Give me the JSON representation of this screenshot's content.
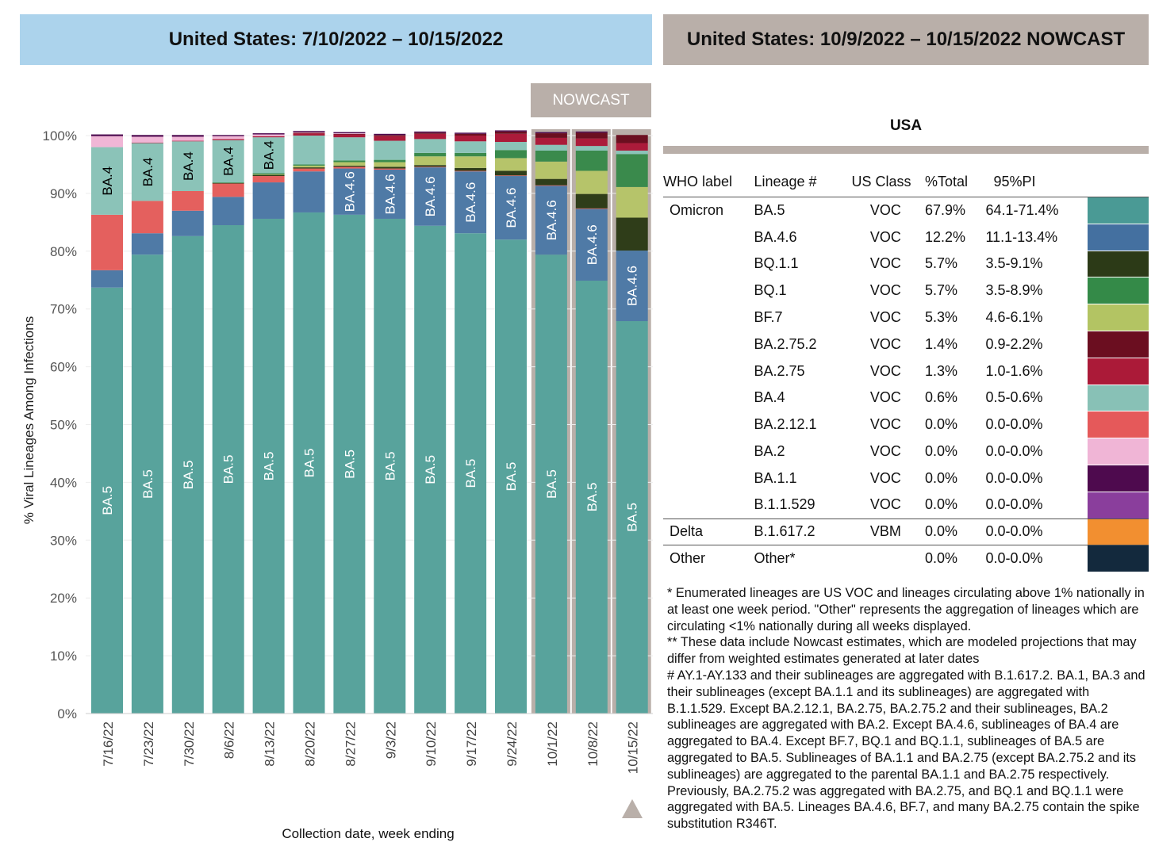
{
  "headers": {
    "left": "United States: 7/10/2022 – 10/15/2022",
    "right": "United States: 10/9/2022 – 10/15/2022 NOWCAST"
  },
  "nowcast_label": "NOWCAST",
  "chart_data": {
    "type": "bar",
    "stacked": true,
    "xlabel": "Collection date, week ending",
    "ylabel": "% Viral Lineages Among Infections",
    "ylim": [
      0,
      100
    ],
    "yticks": [
      "0%",
      "10%",
      "20%",
      "30%",
      "40%",
      "50%",
      "60%",
      "70%",
      "80%",
      "90%",
      "100%"
    ],
    "grid": true,
    "categories": [
      "7/16/22",
      "7/23/22",
      "7/30/22",
      "8/6/22",
      "8/13/22",
      "8/20/22",
      "8/27/22",
      "9/3/22",
      "9/10/22",
      "9/17/22",
      "9/24/22",
      "10/1/22",
      "10/8/22",
      "10/15/22"
    ],
    "nowcast_weeks": [
      "10/1/22",
      "10/8/22",
      "10/15/22"
    ],
    "series": [
      {
        "name": "BA.5",
        "color": "#58a39c",
        "label_color": "#ffffff",
        "labeled_weeks": [
          0,
          1,
          2,
          3,
          4,
          5,
          6,
          7,
          8,
          9,
          10,
          11,
          12,
          13
        ],
        "values": [
          73.7,
          79.4,
          82.6,
          84.5,
          85.6,
          86.7,
          86.3,
          85.6,
          84.4,
          83.1,
          82.0,
          79.4,
          74.9,
          67.9
        ]
      },
      {
        "name": "BA.4.6",
        "color": "#4f7aa6",
        "label_color": "#ffffff",
        "labeled_weeks": [
          6,
          7,
          8,
          9,
          10,
          11,
          12,
          13
        ],
        "values": [
          3.0,
          3.7,
          4.4,
          4.9,
          6.3,
          7.1,
          8.0,
          8.5,
          10.1,
          10.7,
          11.0,
          11.9,
          12.4,
          12.2
        ]
      },
      {
        "name": "BA.2.12.1",
        "color": "#e4605e",
        "values": [
          9.6,
          5.6,
          3.4,
          2.3,
          1.1,
          0.5,
          0.3,
          0.2,
          0.1,
          0.1,
          0.1,
          0.1,
          0.1,
          0.0
        ]
      },
      {
        "name": "BQ.1.1",
        "color": "#2f3d19",
        "values": [
          0,
          0,
          0,
          0.1,
          0.2,
          0.2,
          0.2,
          0.3,
          0.3,
          0.5,
          0.8,
          1.1,
          2.5,
          5.7
        ]
      },
      {
        "name": "BF.7",
        "color": "#b6c46a",
        "values": [
          0,
          0,
          0,
          0,
          0.1,
          0.3,
          0.6,
          0.8,
          1.5,
          2.0,
          2.2,
          3.0,
          4.0,
          5.3
        ]
      },
      {
        "name": "BQ.1",
        "color": "#3a8a4c",
        "values": [
          0,
          0,
          0,
          0.1,
          0.2,
          0.2,
          0.3,
          0.4,
          0.6,
          0.6,
          1.4,
          1.9,
          3.5,
          5.7
        ]
      },
      {
        "name": "BA.4",
        "color": "#8bc3b8",
        "label_color": "#000000",
        "labeled_weeks": [
          0,
          1,
          2,
          3,
          4
        ],
        "values": [
          11.7,
          10.0,
          8.6,
          7.3,
          6.2,
          5.0,
          4.0,
          3.3,
          2.4,
          2.0,
          1.4,
          1.0,
          0.8,
          0.6
        ]
      },
      {
        "name": "BA.2.75",
        "color": "#ab1b3a",
        "values": [
          0,
          0.1,
          0.1,
          0.2,
          0.2,
          0.4,
          0.5,
          0.8,
          0.9,
          1.0,
          1.4,
          1.2,
          1.3,
          1.3
        ]
      },
      {
        "name": "BA.2.75.2",
        "color": "#6b0f20",
        "values": [
          0,
          0,
          0,
          0,
          0,
          0.1,
          0.1,
          0.2,
          0.2,
          0.3,
          0.4,
          0.8,
          1.0,
          1.4
        ]
      },
      {
        "name": "BA.2",
        "color": "#f0b6d6",
        "values": [
          1.9,
          1.0,
          0.7,
          0.5,
          0.3,
          0.1,
          0.1,
          0,
          0,
          0,
          0,
          0,
          0,
          0
        ]
      },
      {
        "name": "BA.1.1",
        "color": "#4d0a4f",
        "values": [
          0.3,
          0.3,
          0.3,
          0.2,
          0.2,
          0.2,
          0.2,
          0.2,
          0.2,
          0.2,
          0.2,
          0.2,
          0.2,
          0
        ]
      }
    ]
  },
  "table": {
    "title": "USA",
    "columns": [
      "WHO label",
      "Lineage #",
      "US Class",
      "%Total",
      "95%PI"
    ],
    "rows": [
      {
        "who": "Omicron",
        "lineage": "BA.5",
        "cls": "VOC",
        "total": "67.9%",
        "pi": "64.1-71.4%",
        "color": "#4a9a95"
      },
      {
        "who": "",
        "lineage": "BA.4.6",
        "cls": "VOC",
        "total": "12.2%",
        "pi": "11.1-13.4%",
        "color": "#4470a0"
      },
      {
        "who": "",
        "lineage": "BQ.1.1",
        "cls": "VOC",
        "total": "5.7%",
        "pi": "3.5-9.1%",
        "color": "#2c3a17"
      },
      {
        "who": "",
        "lineage": "BQ.1",
        "cls": "VOC",
        "total": "5.7%",
        "pi": "3.5-8.9%",
        "color": "#348a48"
      },
      {
        "who": "",
        "lineage": "BF.7",
        "cls": "VOC",
        "total": "5.3%",
        "pi": "4.6-6.1%",
        "color": "#b3c463"
      },
      {
        "who": "",
        "lineage": "BA.2.75.2",
        "cls": "VOC",
        "total": "1.4%",
        "pi": "0.9-2.2%",
        "color": "#6b0e20"
      },
      {
        "who": "",
        "lineage": "BA.2.75",
        "cls": "VOC",
        "total": "1.3%",
        "pi": "1.0-1.6%",
        "color": "#ab1a38"
      },
      {
        "who": "",
        "lineage": "BA.4",
        "cls": "VOC",
        "total": "0.6%",
        "pi": "0.5-0.6%",
        "color": "#88c1b6"
      },
      {
        "who": "",
        "lineage": "BA.2.12.1",
        "cls": "VOC",
        "total": "0.0%",
        "pi": "0.0-0.0%",
        "color": "#e5595a"
      },
      {
        "who": "",
        "lineage": "BA.2",
        "cls": "VOC",
        "total": "0.0%",
        "pi": "0.0-0.0%",
        "color": "#f0b5d6"
      },
      {
        "who": "",
        "lineage": "BA.1.1",
        "cls": "VOC",
        "total": "0.0%",
        "pi": "0.0-0.0%",
        "color": "#4e0a4e"
      },
      {
        "who": "",
        "lineage": "B.1.1.529",
        "cls": "VOC",
        "total": "0.0%",
        "pi": "0.0-0.0%",
        "color": "#8a3e9c"
      },
      {
        "who": "Delta",
        "lineage": "B.1.617.2",
        "cls": "VBM",
        "total": "0.0%",
        "pi": "0.0-0.0%",
        "color": "#f28f30",
        "sep": true
      },
      {
        "who": "Other",
        "lineage": "Other*",
        "cls": "",
        "total": "0.0%",
        "pi": "0.0-0.0%",
        "color": "#13293d",
        "sep": true
      }
    ]
  },
  "notes": [
    "*      Enumerated lineages are US VOC and lineages circulating above 1% nationally in at least one week period. \"Other\" represents the aggregation of lineages which are circulating <1% nationally during all weeks displayed.",
    "**      These data include Nowcast estimates, which are modeled projections that may differ from weighted estimates generated at later dates",
    "#      AY.1-AY.133 and their sublineages are aggregated with B.1.617.2. BA.1, BA.3 and their sublineages (except BA.1.1 and its sublineages) are aggregated with B.1.1.529. Except BA.2.12.1, BA.2.75, BA.2.75.2 and their sublineages, BA.2 sublineages are aggregated with BA.2. Except BA.4.6, sublineages of BA.4 are aggregated to BA.4. Except BF.7, BQ.1 and BQ.1.1, sublineages of BA.5 are aggregated to BA.5. Sublineages of BA.1.1 and BA.2.75 (except BA.2.75.2 and its sublineages) are aggregated to the parental BA.1.1 and BA.2.75 respectively. Previously, BA.2.75.2 was aggregated with BA.2.75, and BQ.1 and BQ.1.1 were aggregated with BA.5. Lineages BA.4.6, BF.7, and many BA.2.75 contain the spike substitution R346T."
  ]
}
